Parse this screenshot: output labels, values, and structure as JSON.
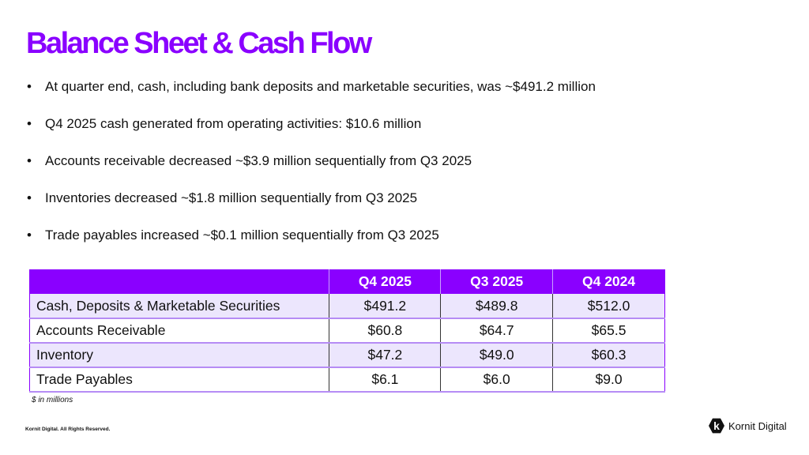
{
  "title": "Balance Sheet & Cash Flow",
  "bullets": [
    "At quarter end, cash, including bank deposits and marketable securities, was ~$491.2 million",
    "Q4 2025 cash generated from operating activities: $10.6 million",
    "Accounts receivable decreased ~$3.9 million sequentially from Q3 2025",
    "Inventories decreased ~$1.8 million sequentially from Q3 2025",
    "Trade payables increased ~$0.1 million sequentially from Q3 2025"
  ],
  "table": {
    "headers": [
      "",
      "Q4 2025",
      "Q3 2025",
      "Q4 2024"
    ],
    "rows": [
      [
        "Cash, Deposits & Marketable Securities",
        "$491.2",
        "$489.8",
        "$512.0"
      ],
      [
        "Accounts Receivable",
        "$60.8",
        "$64.7",
        "$65.5"
      ],
      [
        "Inventory",
        "$47.2",
        "$49.0",
        "$60.3"
      ],
      [
        "Trade Payables",
        "$6.1",
        "$6.0",
        "$9.0"
      ]
    ]
  },
  "note": "$ in millions",
  "copyright": "Kornit Digital. All Rights Reserved.",
  "logo": {
    "mark": "k",
    "text": "Kornit Digital"
  },
  "colors": {
    "accent": "#8a00ff",
    "row_shade": "#ece6fd"
  }
}
